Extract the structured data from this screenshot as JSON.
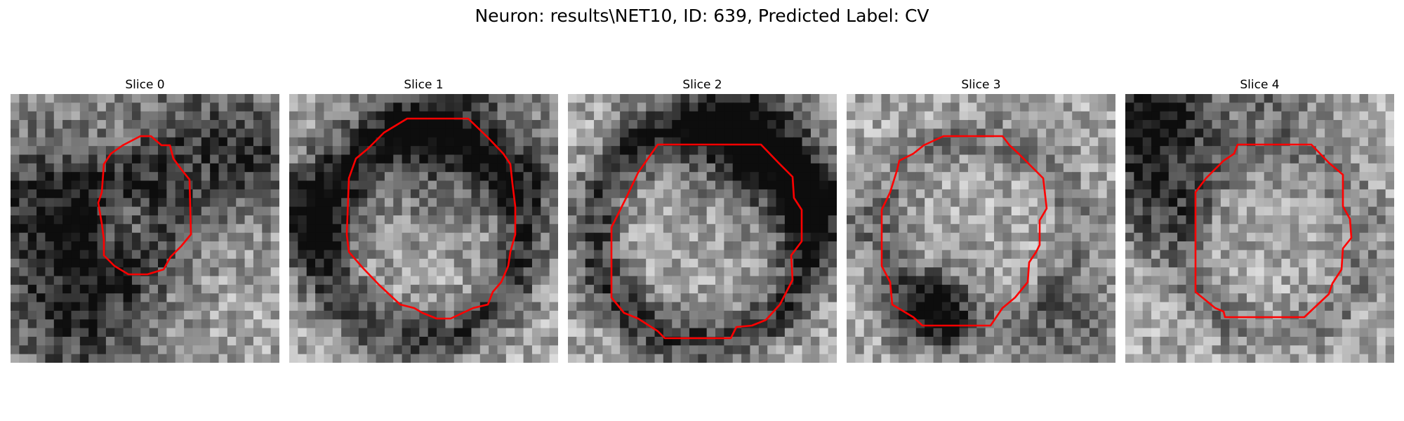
{
  "figure": {
    "title": "Neuron: results\\NET10, ID: 639, Predicted Label: CV"
  },
  "slices": [
    {
      "label": "Slice 0"
    },
    {
      "label": "Slice 1"
    },
    {
      "label": "Slice 2"
    },
    {
      "label": "Slice 3"
    },
    {
      "label": "Slice 4"
    }
  ],
  "style": {
    "contour_color": "#ff0000"
  }
}
